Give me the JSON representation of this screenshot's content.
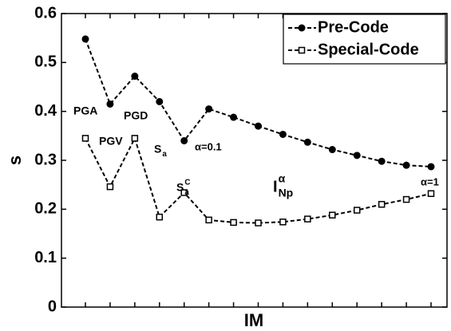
{
  "chart_data": {
    "type": "line",
    "x_label": "IM",
    "y_label": "s",
    "categories": [
      null,
      null,
      null,
      null,
      null,
      null,
      null,
      null,
      null,
      null,
      null,
      null,
      null,
      null,
      null
    ],
    "series": [
      {
        "name": "Pre-Code",
        "color": "#000000",
        "marker": "circle",
        "values": [
          0.548,
          0.415,
          0.472,
          0.42,
          0.34,
          0.405,
          0.388,
          0.37,
          0.353,
          0.337,
          0.322,
          0.31,
          0.298,
          0.29,
          0.287
        ]
      },
      {
        "name": "Special-Code",
        "color": "#000000",
        "marker": "square",
        "values": [
          0.345,
          0.246,
          0.345,
          0.184,
          0.234,
          0.178,
          0.173,
          0.172,
          0.174,
          0.18,
          0.188,
          0.198,
          0.21,
          0.22,
          0.232
        ]
      }
    ],
    "ylim": [
      0,
      0.6
    ],
    "yticks": [
      0,
      0.1,
      0.2,
      0.3,
      0.4,
      0.5,
      0.6
    ],
    "grid": false,
    "legend": "upper right",
    "annotations": [
      {
        "text": "PGA"
      },
      {
        "text": "PGV"
      },
      {
        "text": "PGD"
      },
      {
        "text": "S",
        "sub": "a"
      },
      {
        "text": "S",
        "sub": "a",
        "sup": "C"
      },
      {
        "text": "α=0.1"
      },
      {
        "text": "I",
        "sub": "Np",
        "sup": "α"
      },
      {
        "text": "α=1"
      }
    ]
  }
}
